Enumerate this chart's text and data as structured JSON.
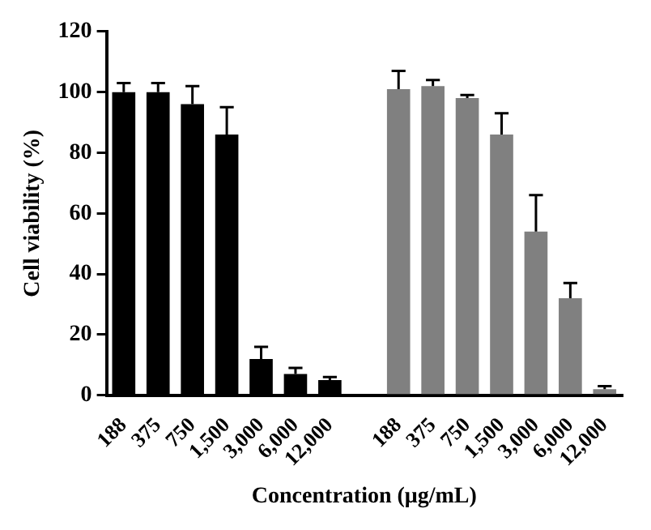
{
  "chart_data": {
    "type": "bar",
    "xlabel": "Concentration (μg/mL)",
    "ylabel": "Cell viability (%)",
    "categories": [
      "188",
      "375",
      "750",
      "1,500",
      "3,000",
      "6,000",
      "12,000",
      null,
      "188",
      "375",
      "750",
      "1,500",
      "3,000",
      "6,000",
      "12,000"
    ],
    "series": [
      {
        "color": "#000000",
        "values": [
          100,
          100,
          96,
          86,
          12,
          7,
          5,
          null,
          null,
          null,
          null,
          null,
          null,
          null,
          null
        ],
        "errors": [
          3,
          3,
          6,
          9,
          4,
          2,
          1,
          null,
          null,
          null,
          null,
          null,
          null,
          null,
          null
        ]
      },
      {
        "color": "#808080",
        "values": [
          null,
          null,
          null,
          null,
          null,
          null,
          null,
          null,
          101,
          102,
          98,
          86,
          54,
          32,
          2
        ],
        "errors": [
          null,
          null,
          null,
          null,
          null,
          null,
          null,
          null,
          6,
          2,
          1,
          7,
          12,
          5,
          1
        ]
      }
    ],
    "ylim": [
      0,
      120
    ],
    "yticks": [
      0,
      20,
      40,
      60,
      80,
      100,
      120
    ],
    "grid": false,
    "legend": false
  }
}
